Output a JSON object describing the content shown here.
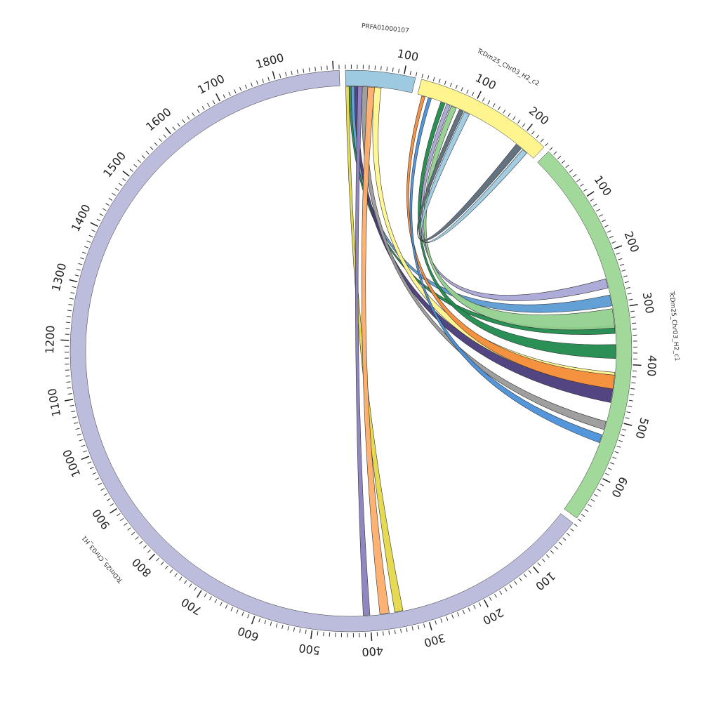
{
  "chart_data": {
    "type": "chord",
    "segments": [
      {
        "name": "PRFA01000107",
        "length": 120,
        "color": "#9ecae1",
        "ticks": [
          100
        ]
      },
      {
        "name": "TcDm25_Chr03_H2_c2",
        "length": 240,
        "color": "#fff58f",
        "ticks": [
          100,
          200
        ]
      },
      {
        "name": "TcDm25_Chr03_H2_c1",
        "length": 680,
        "color": "#a1d99b",
        "ticks": [
          100,
          200,
          300,
          400,
          500,
          600
        ]
      },
      {
        "name": "TcDm25_Chr03_H1",
        "length": 1910,
        "color": "#bcbddc",
        "ticks": [
          100,
          200,
          300,
          400,
          500,
          600,
          700,
          800,
          900,
          1000,
          1100,
          1200,
          1300,
          1400,
          1500,
          1600,
          1700,
          1800
        ]
      }
    ],
    "links": [
      {
        "from": [
          0,
          0,
          6
        ],
        "to": [
          3,
          340,
          355
        ],
        "color": "#e6d84a"
      },
      {
        "from": [
          0,
          6,
          10
        ],
        "to": [
          2,
          330,
          345
        ],
        "color": "#1f8a4c"
      },
      {
        "from": [
          0,
          10,
          16
        ],
        "to": [
          2,
          275,
          295
        ],
        "color": "#5a9bd4"
      },
      {
        "from": [
          0,
          16,
          22
        ],
        "to": [
          2,
          440,
          470
        ],
        "color": "#4a3b7a"
      },
      {
        "from": [
          0,
          22,
          30
        ],
        "to": [
          3,
          400,
          412
        ],
        "color": "#8c7fbf"
      },
      {
        "from": [
          0,
          30,
          40
        ],
        "to": [
          2,
          505,
          520
        ],
        "color": "#9a9a9a"
      },
      {
        "from": [
          0,
          40,
          52
        ],
        "to": [
          3,
          365,
          382
        ],
        "color": "#fdae6b"
      },
      {
        "from": [
          0,
          52,
          64
        ],
        "to": [
          2,
          415,
          445
        ],
        "color": "#fff58f"
      },
      {
        "from": [
          1,
          8,
          14
        ],
        "to": [
          2,
          420,
          445
        ],
        "color": "#f48c3b"
      },
      {
        "from": [
          1,
          20,
          26
        ],
        "to": [
          2,
          530,
          545
        ],
        "color": "#4a90d9"
      },
      {
        "from": [
          1,
          44,
          52
        ],
        "to": [
          2,
          365,
          390
        ],
        "color": "#1f8a4c"
      },
      {
        "from": [
          1,
          55,
          62
        ],
        "to": [
          2,
          245,
          262
        ],
        "color": "#a9a6d6"
      },
      {
        "from": [
          1,
          64,
          74
        ],
        "to": [
          2,
          300,
          335
        ],
        "color": "#93d08f"
      },
      {
        "from": [
          1,
          80,
          88
        ],
        "to": [
          1,
          200,
          212
        ],
        "color": "#5b6b7a"
      },
      {
        "from": [
          1,
          90,
          100
        ],
        "to": [
          1,
          215,
          225
        ],
        "color": "#9ecae1"
      }
    ]
  }
}
